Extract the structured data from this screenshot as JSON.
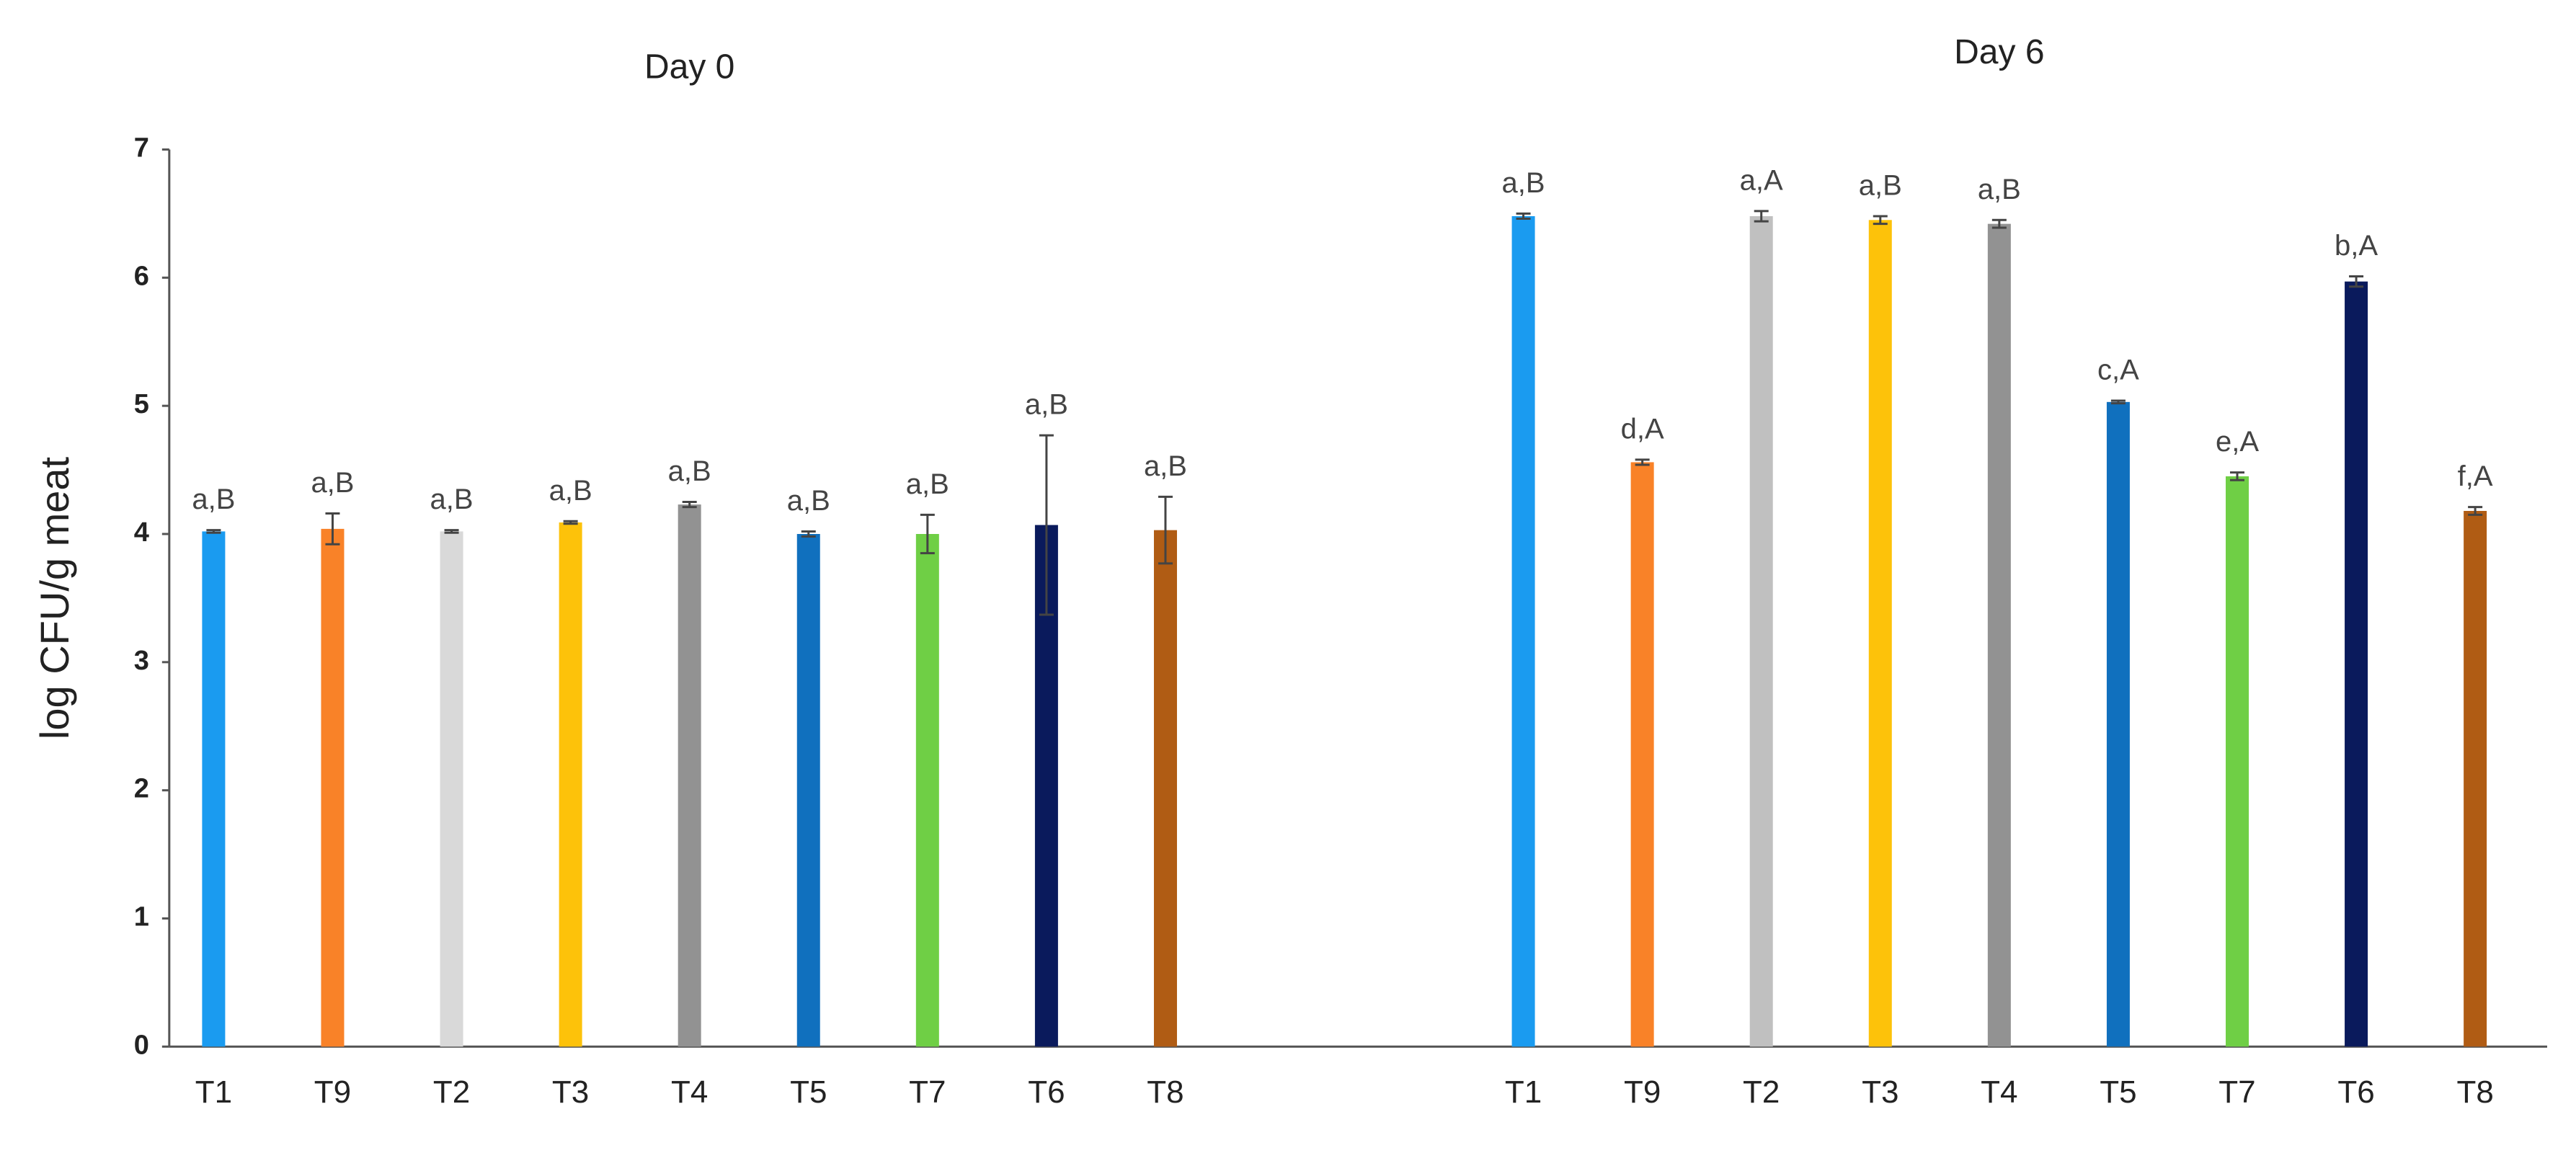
{
  "chart_data": {
    "type": "bar",
    "ylabel": "log CFU/g meat",
    "ylim": [
      0,
      7
    ],
    "yticks": [
      0,
      1,
      2,
      3,
      4,
      5,
      6,
      7
    ],
    "grid": false,
    "groups": [
      {
        "name": "Day 0",
        "categories": [
          "T1",
          "T9",
          "T2",
          "T3",
          "T4",
          "T5",
          "T7",
          "T6",
          "T8"
        ],
        "values": [
          4.02,
          4.04,
          4.02,
          4.09,
          4.23,
          4.0,
          4.0,
          4.07,
          4.03
        ],
        "errors": [
          0.01,
          0.12,
          0.01,
          0.01,
          0.02,
          0.02,
          0.15,
          0.7,
          0.26
        ],
        "letters": [
          "a,B",
          "a,B",
          "a,B",
          "a,B",
          "a,B",
          "a,B",
          "a,B",
          "a,B",
          "a,B"
        ],
        "colors": [
          "#1a9bf0",
          "#f98228",
          "#d9d9d9",
          "#fdc20a",
          "#929292",
          "#1070be",
          "#6fcf45",
          "#0a1a5c",
          "#b05c14"
        ]
      },
      {
        "name": "Day 6",
        "categories": [
          "T1",
          "T9",
          "T2",
          "T3",
          "T4",
          "T5",
          "T7",
          "T6",
          "T8"
        ],
        "values": [
          6.48,
          4.56,
          6.48,
          6.45,
          6.42,
          5.03,
          4.45,
          5.97,
          4.18
        ],
        "errors": [
          0.02,
          0.02,
          0.04,
          0.03,
          0.03,
          0.01,
          0.03,
          0.04,
          0.03
        ],
        "letters": [
          "a,B",
          "d,A",
          "a,A",
          "a,B",
          "a,B",
          "c,A",
          "e,A",
          "b,A",
          "f,A"
        ],
        "colors": [
          "#1a9bf0",
          "#f98228",
          "#c0c0c0",
          "#fdc20a",
          "#929292",
          "#1070be",
          "#6fcf45",
          "#0a1a5c",
          "#b05c14"
        ]
      }
    ]
  }
}
